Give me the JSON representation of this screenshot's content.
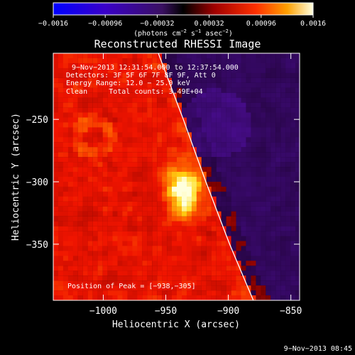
{
  "chart_data": {
    "type": "heatmap",
    "title": "Reconstructed RHESSI Image",
    "xlabel": "Heliocentric X (arcsec)",
    "ylabel": "Heliocentric Y (arcsec)",
    "xlim": [
      -1040,
      -843
    ],
    "ylim": [
      -395,
      -197
    ],
    "xticks": [
      -1000,
      -950,
      -900,
      -850
    ],
    "xtick_labels": [
      "−1000",
      "−950",
      "−900",
      "−850"
    ],
    "yticks": [
      -250,
      -300,
      -350
    ],
    "ytick_labels": [
      "−250",
      "−300",
      "−350"
    ],
    "colorbar": {
      "range": [
        -0.0016,
        0.0016
      ],
      "ticks": [
        -0.0016,
        -0.00096,
        -0.00032,
        0.00032,
        0.00096,
        0.0016
      ],
      "tick_labels": [
        "−0.0016",
        "−0.00096",
        "−0.00032",
        "0.00032",
        "0.00096",
        "0.0016"
      ],
      "label_main": "(photons cm",
      "label_sup1": "−2",
      "label_mid": " s",
      "label_sup2": "−1",
      "label_mid2": " asec",
      "label_sup3": "−2",
      "label_end": ")"
    },
    "source": {
      "x": -938,
      "y": -305
    },
    "limb": [
      [
        -956,
        -197
      ],
      [
        -936,
        -250
      ],
      [
        -918,
        -300
      ],
      [
        -899,
        -350
      ],
      [
        -880,
        -395
      ]
    ]
  },
  "annotations": {
    "time_range": "9−Nov−2013 12:31:54.000 to 12:37:54.000",
    "detectors": "Detectors: 3F 5F 6F 7F 8F 9F, Att 0",
    "energy": "Energy Range: 12.0 − 25.0 keV",
    "clean": "Clean     Total counts: 3.49E+04",
    "peak": "Position of Peak = [−938,−305]"
  },
  "footer_timestamp": "9−Nov−2013 08:45"
}
